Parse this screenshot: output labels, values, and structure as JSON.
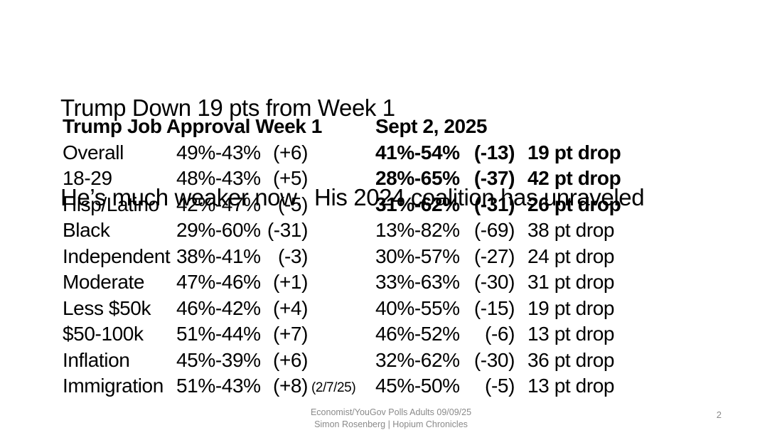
{
  "slide": {
    "title_line1": "Trump Down 19 pts from Week 1",
    "title_line2": "He’s much weaker now.  His 2024 coalition has unraveled"
  },
  "table": {
    "header_left": "Trump Job Approval Week 1",
    "header_right": "Sept 2, 2025",
    "rows": [
      {
        "label": "Overall",
        "w1_values": "49%-43%",
        "w1_margin": "(+6)",
        "note": "",
        "sept_values": "41%-54%",
        "sept_margin": "(-13)",
        "drop": "19 pt drop",
        "emphasis": true
      },
      {
        "label": "18-29",
        "w1_values": "48%-43%",
        "w1_margin": "(+5)",
        "note": "",
        "sept_values": "28%-65%",
        "sept_margin": "(-37)",
        "drop": "42 pt drop",
        "emphasis": true
      },
      {
        "label": "Hisp/Latino",
        "w1_values": "42%-47%",
        "w1_margin": "(-5)",
        "note": "",
        "sept_values": "31%-62%",
        "sept_margin": "(-31)",
        "drop": "26 pt drop",
        "emphasis": true
      },
      {
        "label": "Black",
        "w1_values": "29%-60%",
        "w1_margin": "(-31)",
        "note": "",
        "sept_values": "13%-82%",
        "sept_margin": "(-69)",
        "drop": "38 pt drop",
        "emphasis": false
      },
      {
        "label": "Independent",
        "w1_values": "38%-41%",
        "w1_margin": "(-3)",
        "note": "",
        "sept_values": "30%-57%",
        "sept_margin": "(-27)",
        "drop": "24 pt drop",
        "emphasis": false
      },
      {
        "label": "Moderate",
        "w1_values": "47%-46%",
        "w1_margin": "(+1)",
        "note": "",
        "sept_values": "33%-63%",
        "sept_margin": "(-30)",
        "drop": "31 pt drop",
        "emphasis": false
      },
      {
        "label": "Less $50k",
        "w1_values": "46%-42%",
        "w1_margin": "(+4)",
        "note": "",
        "sept_values": "40%-55%",
        "sept_margin": "(-15)",
        "drop": "19 pt drop",
        "emphasis": false
      },
      {
        "label": "$50-100k",
        "w1_values": "51%-44%",
        "w1_margin": "(+7)",
        "note": "",
        "sept_values": "46%-52%",
        "sept_margin": "(-6)",
        "drop": "13 pt drop",
        "emphasis": false
      },
      {
        "label": "Inflation",
        "w1_values": "45%-39%",
        "w1_margin": "(+6)",
        "note": "",
        "sept_values": "32%-62%",
        "sept_margin": "(-30)",
        "drop": "36 pt drop",
        "emphasis": false
      },
      {
        "label": "Immigration",
        "w1_values": "51%-43%",
        "w1_margin": "(+8)",
        "note": "(2/7/25)",
        "sept_values": "45%-50%",
        "sept_margin": "(-5)",
        "drop": "13 pt drop",
        "emphasis": false
      }
    ]
  },
  "footer": {
    "source_line": "Economist/YouGov Polls Adults 09/09/25",
    "author_line": "Simon Rosenberg | Hopium Chronicles",
    "page_number": "2"
  },
  "colors": {
    "background": "#ffffff",
    "text": "#000000",
    "muted": "#8a8a8a"
  }
}
